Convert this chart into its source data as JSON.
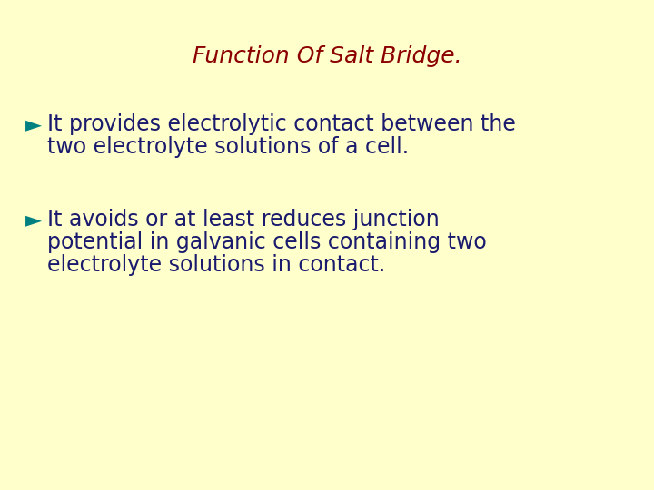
{
  "background_color": "#ffffcc",
  "title": "Function Of Salt Bridge.",
  "title_color": "#8b0000",
  "title_fontsize": 18,
  "title_style": "italic",
  "title_weight": "normal",
  "bullet_color": "#008080",
  "text_color": "#1a1a6e",
  "bullet_fontsize": 17,
  "bullet1_line1": "It provides electrolytic contact between the",
  "bullet1_line2": "two electrolyte solutions of a cell.",
  "bullet2_line1": "It avoids or at least reduces junction",
  "bullet2_line2": "potential in galvanic cells containing two",
  "bullet2_line3": "electrolyte solutions in contact.",
  "bullet_symbol": "►"
}
